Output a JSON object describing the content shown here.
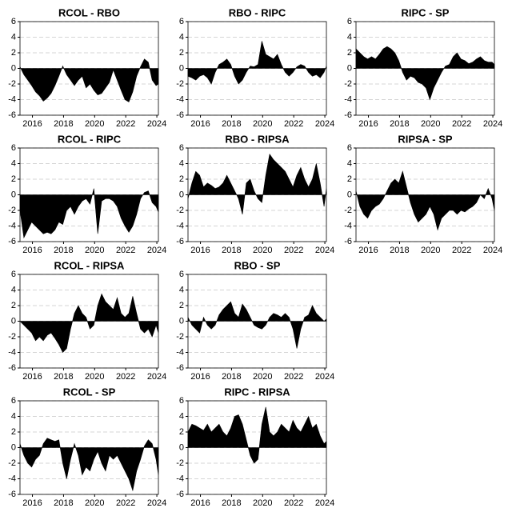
{
  "chart_data": [
    {
      "type": "area",
      "title": "RCOL - RBO",
      "color": "#000000",
      "grid": true,
      "xlim": [
        2015.2,
        2024.1
      ],
      "ylim": [
        -6,
        6
      ],
      "xticks": [
        2016,
        2018,
        2020,
        2022,
        2024
      ],
      "yticks": [
        -6,
        -4,
        -2,
        0,
        2,
        4,
        6
      ],
      "x": [
        2015.2,
        2015.45,
        2015.7,
        2015.95,
        2016.2,
        2016.45,
        2016.7,
        2016.95,
        2017.2,
        2017.45,
        2017.7,
        2017.95,
        2018.2,
        2018.45,
        2018.7,
        2018.95,
        2019.2,
        2019.45,
        2019.7,
        2019.95,
        2020.2,
        2020.45,
        2020.7,
        2020.95,
        2021.2,
        2021.45,
        2021.7,
        2021.95,
        2022.2,
        2022.45,
        2022.7,
        2022.95,
        2023.2,
        2023.45,
        2023.7,
        2023.95,
        2024.1
      ],
      "values": [
        0.2,
        -0.8,
        -1.5,
        -2.2,
        -3,
        -3.5,
        -4.2,
        -3.8,
        -3.2,
        -2.2,
        -1,
        0.3,
        -0.8,
        -1.5,
        -2.2,
        -1.5,
        -1,
        -2.5,
        -2,
        -2.8,
        -3.4,
        -3.2,
        -2.5,
        -1.8,
        -0.2,
        -1.5,
        -2.8,
        -4,
        -4.3,
        -3,
        -1,
        0.2,
        1.2,
        0.8,
        -1.5,
        -2.2,
        -2
      ]
    },
    {
      "type": "area",
      "title": "RBO - RIPC",
      "color": "#000000",
      "grid": true,
      "xlim": [
        2015.2,
        2024.1
      ],
      "ylim": [
        -6,
        6
      ],
      "xticks": [
        2016,
        2018,
        2020,
        2022,
        2024
      ],
      "yticks": [
        -6,
        -4,
        -2,
        0,
        2,
        4,
        6
      ],
      "x": [
        2015.2,
        2015.45,
        2015.7,
        2015.95,
        2016.2,
        2016.45,
        2016.7,
        2016.95,
        2017.2,
        2017.45,
        2017.7,
        2017.95,
        2018.2,
        2018.45,
        2018.7,
        2018.95,
        2019.2,
        2019.45,
        2019.7,
        2019.95,
        2020.2,
        2020.45,
        2020.7,
        2020.95,
        2021.2,
        2021.45,
        2021.7,
        2021.95,
        2022.2,
        2022.45,
        2022.7,
        2022.95,
        2023.2,
        2023.45,
        2023.7,
        2023.95,
        2024.1
      ],
      "values": [
        -1,
        -1.2,
        -1.5,
        -1,
        -0.8,
        -1.2,
        -2,
        -0.5,
        0.5,
        0.8,
        1.2,
        0.5,
        -1,
        -2,
        -1.5,
        -0.5,
        0.3,
        0.2,
        0.5,
        3.5,
        1.8,
        1.5,
        1.2,
        1.8,
        0.5,
        -0.5,
        -1,
        -0.5,
        0.2,
        0.5,
        0.3,
        -0.5,
        -1,
        -0.8,
        -1.2,
        -0.5,
        0.3
      ]
    },
    {
      "type": "area",
      "title": "RIPC - SP",
      "color": "#000000",
      "grid": true,
      "xlim": [
        2015.2,
        2024.1
      ],
      "ylim": [
        -6,
        6
      ],
      "xticks": [
        2016,
        2018,
        2020,
        2022,
        2024
      ],
      "yticks": [
        -6,
        -4,
        -2,
        0,
        2,
        4,
        6
      ],
      "x": [
        2015.2,
        2015.45,
        2015.7,
        2015.95,
        2016.2,
        2016.45,
        2016.7,
        2016.95,
        2017.2,
        2017.45,
        2017.7,
        2017.95,
        2018.2,
        2018.45,
        2018.7,
        2018.95,
        2019.2,
        2019.45,
        2019.7,
        2019.95,
        2020.2,
        2020.45,
        2020.7,
        2020.95,
        2021.2,
        2021.45,
        2021.7,
        2021.95,
        2022.2,
        2022.45,
        2022.7,
        2022.95,
        2023.2,
        2023.45,
        2023.7,
        2023.95,
        2024.1
      ],
      "values": [
        2.5,
        2,
        1.5,
        1.2,
        1.5,
        1.2,
        1.8,
        2.5,
        2.8,
        2.5,
        2,
        1,
        -0.5,
        -1.5,
        -1,
        -1.2,
        -1.8,
        -2,
        -2.5,
        -4,
        -2.5,
        -1.5,
        -0.5,
        0.3,
        0.5,
        1.5,
        2,
        1.2,
        1,
        0.6,
        0.8,
        1.2,
        1.5,
        1,
        0.8,
        0.8,
        0.5
      ]
    },
    {
      "type": "area",
      "title": "RCOL - RIPC",
      "color": "#000000",
      "grid": true,
      "xlim": [
        2015.2,
        2024.1
      ],
      "ylim": [
        -6,
        6
      ],
      "xticks": [
        2016,
        2018,
        2020,
        2022,
        2024
      ],
      "yticks": [
        -6,
        -4,
        -2,
        0,
        2,
        4,
        6
      ],
      "x": [
        2015.2,
        2015.45,
        2015.7,
        2015.95,
        2016.2,
        2016.45,
        2016.7,
        2016.95,
        2017.2,
        2017.45,
        2017.7,
        2017.95,
        2018.2,
        2018.45,
        2018.7,
        2018.95,
        2019.2,
        2019.45,
        2019.7,
        2019.95,
        2020.2,
        2020.45,
        2020.7,
        2020.95,
        2021.2,
        2021.45,
        2021.7,
        2021.95,
        2022.2,
        2022.45,
        2022.7,
        2022.95,
        2023.2,
        2023.45,
        2023.7,
        2023.95,
        2024.1
      ],
      "values": [
        -2,
        -5.5,
        -4.5,
        -3.5,
        -4,
        -4.5,
        -5,
        -4.8,
        -5,
        -4.5,
        -3.5,
        -3.8,
        -2,
        -1.5,
        -2.5,
        -1.5,
        -0.8,
        -0.5,
        -1.2,
        0.8,
        -5,
        -0.8,
        -0.5,
        -0.5,
        -0.8,
        -1.5,
        -3,
        -4,
        -4.8,
        -4,
        -2.5,
        -0.5,
        0.3,
        0.5,
        -1,
        -1.5,
        -2.2
      ]
    },
    {
      "type": "area",
      "title": "RBO - RIPSA",
      "color": "#000000",
      "grid": true,
      "xlim": [
        2015.2,
        2024.1
      ],
      "ylim": [
        -6,
        6
      ],
      "xticks": [
        2016,
        2018,
        2020,
        2022,
        2024
      ],
      "yticks": [
        -6,
        -4,
        -2,
        0,
        2,
        4,
        6
      ],
      "x": [
        2015.2,
        2015.45,
        2015.7,
        2015.95,
        2016.2,
        2016.45,
        2016.7,
        2016.95,
        2017.2,
        2017.45,
        2017.7,
        2017.95,
        2018.2,
        2018.45,
        2018.7,
        2018.95,
        2019.2,
        2019.45,
        2019.7,
        2019.95,
        2020.2,
        2020.45,
        2020.7,
        2020.95,
        2021.2,
        2021.45,
        2021.7,
        2021.95,
        2022.2,
        2022.45,
        2022.7,
        2022.95,
        2023.2,
        2023.45,
        2023.7,
        2023.95,
        2024.1
      ],
      "values": [
        -0.5,
        1.5,
        3,
        2.5,
        1,
        1.5,
        1.2,
        0.8,
        1,
        1.5,
        2.5,
        1.5,
        0.5,
        -0.5,
        -2.5,
        1.5,
        2,
        0.5,
        -0.5,
        -1,
        2.5,
        5.2,
        4.5,
        4,
        3.5,
        3,
        2,
        1,
        2.5,
        3.5,
        2,
        1,
        2,
        4,
        1.5,
        -1.5,
        0.8
      ]
    },
    {
      "type": "area",
      "title": "RIPSA - SP",
      "color": "#000000",
      "grid": true,
      "xlim": [
        2015.2,
        2024.1
      ],
      "ylim": [
        -6,
        6
      ],
      "xticks": [
        2016,
        2018,
        2020,
        2022,
        2024
      ],
      "yticks": [
        -6,
        -4,
        -2,
        0,
        2,
        4,
        6
      ],
      "x": [
        2015.2,
        2015.45,
        2015.7,
        2015.95,
        2016.2,
        2016.45,
        2016.7,
        2016.95,
        2017.2,
        2017.45,
        2017.7,
        2017.95,
        2018.2,
        2018.45,
        2018.7,
        2018.95,
        2019.2,
        2019.45,
        2019.7,
        2019.95,
        2020.2,
        2020.45,
        2020.7,
        2020.95,
        2021.2,
        2021.45,
        2021.7,
        2021.95,
        2022.2,
        2022.45,
        2022.7,
        2022.95,
        2023.2,
        2023.45,
        2023.7,
        2023.95,
        2024.1
      ],
      "values": [
        0.5,
        -1.5,
        -2.5,
        -3,
        -2,
        -1.5,
        -1.2,
        -0.5,
        0.5,
        1.5,
        2,
        1.5,
        3,
        1,
        -1,
        -2.5,
        -3.5,
        -3,
        -2.5,
        -1.5,
        -2.5,
        -4.5,
        -3,
        -2.5,
        -2,
        -2,
        -2.5,
        -2,
        -2.2,
        -1.8,
        -1.5,
        -1,
        0,
        -0.5,
        0.8,
        -0.5,
        -2
      ]
    },
    {
      "type": "area",
      "title": "RCOL - RIPSA",
      "color": "#000000",
      "grid": true,
      "xlim": [
        2015.2,
        2024.1
      ],
      "ylim": [
        -6,
        6
      ],
      "xticks": [
        2016,
        2018,
        2020,
        2022,
        2024
      ],
      "yticks": [
        -6,
        -4,
        -2,
        0,
        2,
        4,
        6
      ],
      "x": [
        2015.2,
        2015.45,
        2015.7,
        2015.95,
        2016.2,
        2016.45,
        2016.7,
        2016.95,
        2017.2,
        2017.45,
        2017.7,
        2017.95,
        2018.2,
        2018.45,
        2018.7,
        2018.95,
        2019.2,
        2019.45,
        2019.7,
        2019.95,
        2020.2,
        2020.45,
        2020.7,
        2020.95,
        2021.2,
        2021.45,
        2021.7,
        2021.95,
        2022.2,
        2022.45,
        2022.7,
        2022.95,
        2023.2,
        2023.45,
        2023.7,
        2023.95,
        2024.1
      ],
      "values": [
        0,
        -0.5,
        -1,
        -1.5,
        -2.5,
        -2,
        -2.5,
        -1.8,
        -1.5,
        -2.2,
        -3,
        -4,
        -3.5,
        -1,
        1,
        2,
        1,
        0.5,
        -1,
        -0.5,
        2,
        3.5,
        2.5,
        2,
        1.5,
        3,
        1,
        0.5,
        1,
        3.2,
        1,
        -1,
        -1.5,
        -1,
        -2,
        -0.5,
        -1.5
      ]
    },
    {
      "type": "area",
      "title": "RBO - SP",
      "color": "#000000",
      "grid": true,
      "xlim": [
        2015.2,
        2024.1
      ],
      "ylim": [
        -6,
        6
      ],
      "xticks": [
        2016,
        2018,
        2020,
        2022,
        2024
      ],
      "yticks": [
        -6,
        -4,
        -2,
        0,
        2,
        4,
        6
      ],
      "x": [
        2015.2,
        2015.45,
        2015.7,
        2015.95,
        2016.2,
        2016.45,
        2016.7,
        2016.95,
        2017.2,
        2017.45,
        2017.7,
        2017.95,
        2018.2,
        2018.45,
        2018.7,
        2018.95,
        2019.2,
        2019.45,
        2019.7,
        2019.95,
        2020.2,
        2020.45,
        2020.7,
        2020.95,
        2021.2,
        2021.45,
        2021.7,
        2021.95,
        2022.2,
        2022.45,
        2022.7,
        2022.95,
        2023.2,
        2023.45,
        2023.7,
        2023.95,
        2024.1
      ],
      "values": [
        0.5,
        -0.5,
        -1,
        -1.5,
        0.5,
        -0.5,
        -1,
        -0.5,
        0.8,
        1.5,
        2,
        2.5,
        1,
        0.5,
        2.2,
        1.5,
        0.5,
        -0.5,
        -0.8,
        -1,
        -0.5,
        0.5,
        1,
        0.8,
        0.5,
        1,
        0.5,
        -1,
        -3.5,
        -1,
        0.5,
        0.8,
        2,
        1,
        0.5,
        0,
        0.3
      ]
    },
    {
      "type": "area",
      "title": "RCOL - SP",
      "color": "#000000",
      "grid": true,
      "xlim": [
        2015.2,
        2024.1
      ],
      "ylim": [
        -6,
        6
      ],
      "xticks": [
        2016,
        2018,
        2020,
        2022,
        2024
      ],
      "yticks": [
        -6,
        -4,
        -2,
        0,
        2,
        4,
        6
      ],
      "x": [
        2015.2,
        2015.45,
        2015.7,
        2015.95,
        2016.2,
        2016.45,
        2016.7,
        2016.95,
        2017.2,
        2017.45,
        2017.7,
        2017.95,
        2018.2,
        2018.45,
        2018.7,
        2018.95,
        2019.2,
        2019.45,
        2019.7,
        2019.95,
        2020.2,
        2020.45,
        2020.7,
        2020.95,
        2021.2,
        2021.45,
        2021.7,
        2021.95,
        2022.2,
        2022.45,
        2022.7,
        2022.95,
        2023.2,
        2023.45,
        2023.7,
        2023.95,
        2024.1
      ],
      "values": [
        0.5,
        -1,
        -2,
        -2.5,
        -1.5,
        -1,
        0.5,
        1.2,
        1,
        0.8,
        1,
        -2,
        -4,
        -1.5,
        0.5,
        -1,
        -3.5,
        -2.5,
        -3,
        -1.5,
        -0.5,
        -2,
        -3,
        -1,
        -1.5,
        -1,
        -2,
        -3,
        -4,
        -5.5,
        -3,
        -1.5,
        0.2,
        1,
        0.5,
        -1.5,
        -3.5
      ]
    },
    {
      "type": "area",
      "title": "RIPC - RIPSA",
      "color": "#000000",
      "grid": true,
      "xlim": [
        2015.2,
        2024.1
      ],
      "ylim": [
        -6,
        6
      ],
      "xticks": [
        2016,
        2018,
        2020,
        2022,
        2024
      ],
      "yticks": [
        -6,
        -4,
        -2,
        0,
        2,
        4,
        6
      ],
      "x": [
        2015.2,
        2015.45,
        2015.7,
        2015.95,
        2016.2,
        2016.45,
        2016.7,
        2016.95,
        2017.2,
        2017.45,
        2017.7,
        2017.95,
        2018.2,
        2018.45,
        2018.7,
        2018.95,
        2019.2,
        2019.45,
        2019.7,
        2019.95,
        2020.2,
        2020.45,
        2020.7,
        2020.95,
        2021.2,
        2021.45,
        2021.7,
        2021.95,
        2022.2,
        2022.45,
        2022.7,
        2022.95,
        2023.2,
        2023.45,
        2023.7,
        2023.95,
        2024.1
      ],
      "values": [
        2,
        3,
        2.8,
        2.5,
        2.2,
        3,
        2,
        2.5,
        3,
        2,
        1.5,
        2.5,
        4,
        4.2,
        3,
        1,
        -1,
        -2,
        -1.5,
        3,
        5.2,
        2,
        1.5,
        2,
        3,
        2.5,
        2,
        3.5,
        2.5,
        2,
        3,
        4,
        2.5,
        3,
        1.5,
        0.5,
        0.8
      ]
    }
  ]
}
